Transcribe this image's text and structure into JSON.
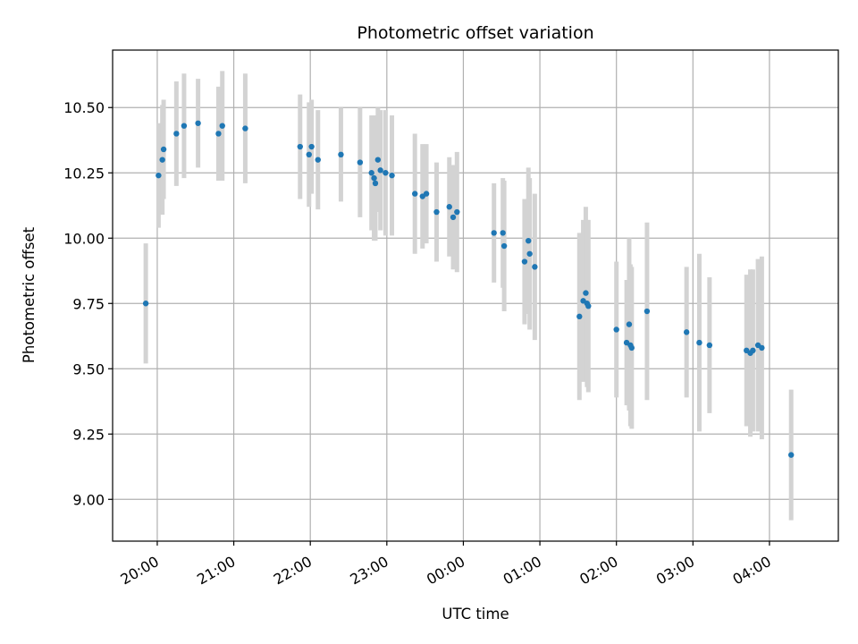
{
  "chart_data": {
    "type": "scatter",
    "title": "Photometric offset variation",
    "xlabel": "UTC time",
    "ylabel": "Photometric offset",
    "x_tick_labels": [
      "20:00",
      "21:00",
      "22:00",
      "23:00",
      "00:00",
      "01:00",
      "02:00",
      "03:00",
      "04:00"
    ],
    "y_tick_labels": [
      "9.00",
      "9.25",
      "9.50",
      "9.75",
      "10.00",
      "10.25",
      "10.50"
    ],
    "xlim": [
      "19:25",
      "04:54"
    ],
    "ylim": [
      8.84,
      10.72
    ],
    "grid": true,
    "colors": {
      "point": "#1f77b4",
      "errorbar": "#d3d3d3",
      "grid": "#b0b0b0"
    },
    "points": [
      {
        "t": "19:51",
        "y": 9.75,
        "err": 0.23
      },
      {
        "t": "20:01",
        "y": 10.24,
        "err": 0.2
      },
      {
        "t": "20:04",
        "y": 10.3,
        "err": 0.21
      },
      {
        "t": "20:05",
        "y": 10.34,
        "err": 0.19
      },
      {
        "t": "20:15",
        "y": 10.4,
        "err": 0.2
      },
      {
        "t": "20:21",
        "y": 10.43,
        "err": 0.2
      },
      {
        "t": "20:32",
        "y": 10.44,
        "err": 0.17
      },
      {
        "t": "20:48",
        "y": 10.4,
        "err": 0.18
      },
      {
        "t": "20:51",
        "y": 10.43,
        "err": 0.21
      },
      {
        "t": "21:09",
        "y": 10.42,
        "err": 0.21
      },
      {
        "t": "21:52",
        "y": 10.35,
        "err": 0.2
      },
      {
        "t": "21:59",
        "y": 10.32,
        "err": 0.2
      },
      {
        "t": "22:01",
        "y": 10.35,
        "err": 0.18
      },
      {
        "t": "22:06",
        "y": 10.3,
        "err": 0.19
      },
      {
        "t": "22:24",
        "y": 10.32,
        "err": 0.18
      },
      {
        "t": "22:39",
        "y": 10.29,
        "err": 0.21
      },
      {
        "t": "22:48",
        "y": 10.25,
        "err": 0.22
      },
      {
        "t": "22:50",
        "y": 10.23,
        "err": 0.24
      },
      {
        "t": "22:51",
        "y": 10.21,
        "err": 0.22
      },
      {
        "t": "22:53",
        "y": 10.3,
        "err": 0.2
      },
      {
        "t": "22:55",
        "y": 10.26,
        "err": 0.23
      },
      {
        "t": "22:59",
        "y": 10.25,
        "err": 0.24
      },
      {
        "t": "23:04",
        "y": 10.24,
        "err": 0.23
      },
      {
        "t": "23:22",
        "y": 10.17,
        "err": 0.23
      },
      {
        "t": "23:28",
        "y": 10.16,
        "err": 0.2
      },
      {
        "t": "23:31",
        "y": 10.17,
        "err": 0.19
      },
      {
        "t": "23:39",
        "y": 10.1,
        "err": 0.19
      },
      {
        "t": "23:49",
        "y": 10.12,
        "err": 0.19
      },
      {
        "t": "23:52",
        "y": 10.08,
        "err": 0.2
      },
      {
        "t": "23:55",
        "y": 10.1,
        "err": 0.23
      },
      {
        "t": "00:24",
        "y": 10.02,
        "err": 0.19
      },
      {
        "t": "00:31",
        "y": 10.02,
        "err": 0.21
      },
      {
        "t": "00:32",
        "y": 9.97,
        "err": 0.25
      },
      {
        "t": "00:48",
        "y": 9.91,
        "err": 0.24
      },
      {
        "t": "00:51",
        "y": 9.99,
        "err": 0.28
      },
      {
        "t": "00:52",
        "y": 9.94,
        "err": 0.29
      },
      {
        "t": "00:56",
        "y": 9.89,
        "err": 0.28
      },
      {
        "t": "01:31",
        "y": 9.7,
        "err": 0.32
      },
      {
        "t": "01:34",
        "y": 9.76,
        "err": 0.31
      },
      {
        "t": "01:36",
        "y": 9.79,
        "err": 0.33
      },
      {
        "t": "01:37",
        "y": 9.75,
        "err": 0.32
      },
      {
        "t": "01:38",
        "y": 9.74,
        "err": 0.33
      },
      {
        "t": "02:00",
        "y": 9.65,
        "err": 0.26
      },
      {
        "t": "02:08",
        "y": 9.6,
        "err": 0.24
      },
      {
        "t": "02:10",
        "y": 9.67,
        "err": 0.33
      },
      {
        "t": "02:11",
        "y": 9.59,
        "err": 0.31
      },
      {
        "t": "02:12",
        "y": 9.58,
        "err": 0.31
      },
      {
        "t": "02:24",
        "y": 9.72,
        "err": 0.34
      },
      {
        "t": "02:55",
        "y": 9.64,
        "err": 0.25
      },
      {
        "t": "03:05",
        "y": 9.6,
        "err": 0.34
      },
      {
        "t": "03:13",
        "y": 9.59,
        "err": 0.26
      },
      {
        "t": "03:42",
        "y": 9.57,
        "err": 0.29
      },
      {
        "t": "03:45",
        "y": 9.56,
        "err": 0.32
      },
      {
        "t": "03:47",
        "y": 9.57,
        "err": 0.31
      },
      {
        "t": "03:51",
        "y": 9.59,
        "err": 0.33
      },
      {
        "t": "03:54",
        "y": 9.58,
        "err": 0.35
      },
      {
        "t": "04:17",
        "y": 9.17,
        "err": 0.25
      }
    ]
  }
}
